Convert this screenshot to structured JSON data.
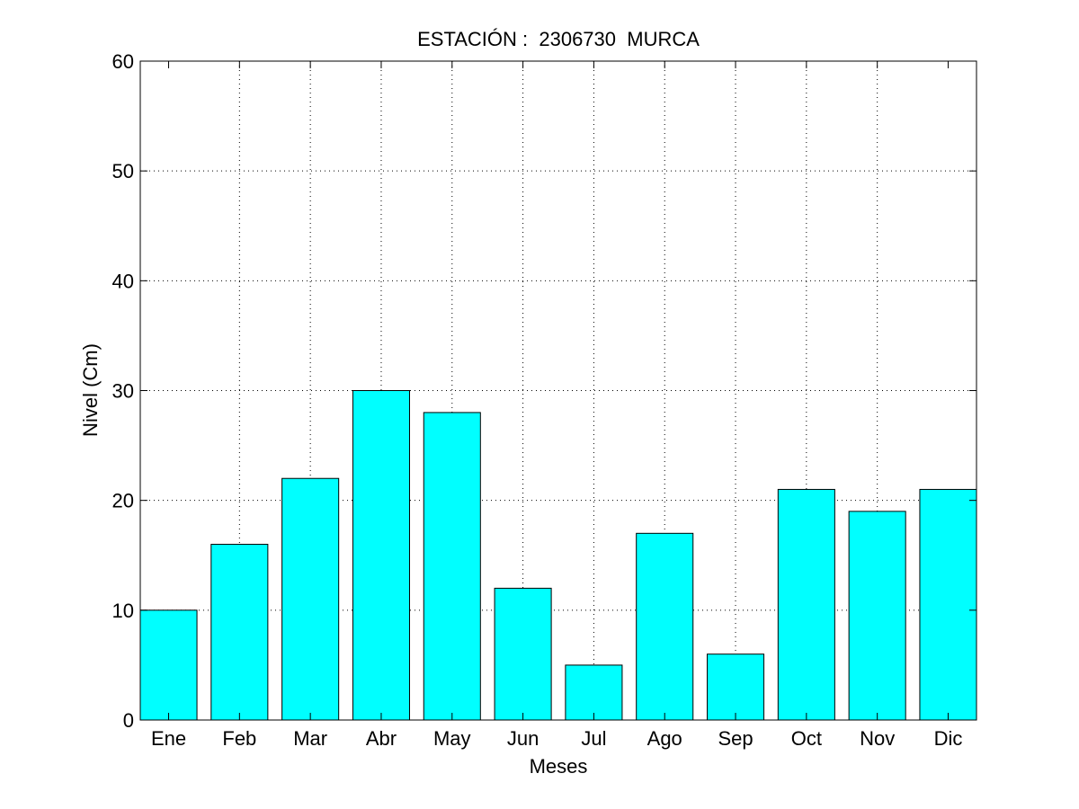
{
  "chart_data": {
    "type": "bar",
    "title": "ESTACIÓN :  2306730  MURCA",
    "xlabel": "Meses",
    "ylabel": "Nivel (Cm)",
    "categories": [
      "Ene",
      "Feb",
      "Mar",
      "Abr",
      "May",
      "Jun",
      "Jul",
      "Ago",
      "Sep",
      "Oct",
      "Nov",
      "Dic"
    ],
    "values": [
      10,
      16,
      22,
      30,
      28,
      12,
      5,
      17,
      6,
      21,
      19,
      21
    ],
    "ylim": [
      0,
      60
    ],
    "yticks": [
      0,
      10,
      20,
      30,
      40,
      50,
      60
    ],
    "grid": true,
    "bar_color": "#00ffff",
    "bar_edge_color": "#000000"
  }
}
